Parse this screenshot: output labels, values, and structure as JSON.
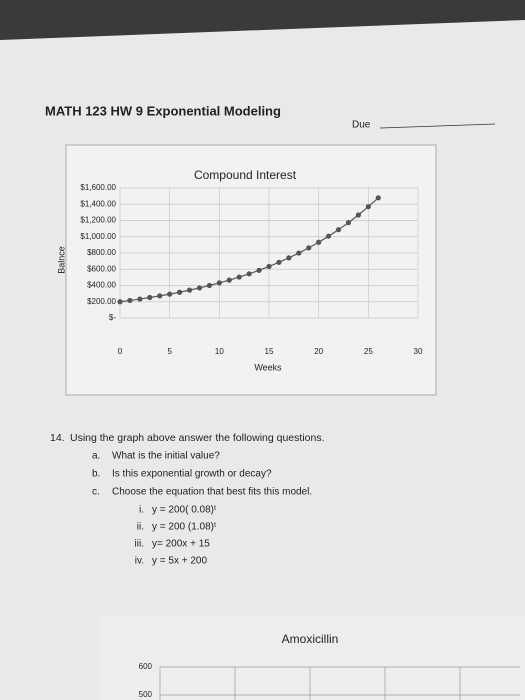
{
  "header": {
    "title": "MATH 123 HW 9 Exponential Modeling",
    "due": "Due"
  },
  "chart_data": [
    {
      "type": "line",
      "title": "Compound Interest",
      "x_label": "Weeks",
      "y_label": "Balnce",
      "color": "#555555",
      "grid": true,
      "x": [
        0,
        1,
        2,
        3,
        4,
        5,
        6,
        7,
        8,
        9,
        10,
        11,
        12,
        13,
        14,
        15,
        16,
        17,
        18,
        19,
        20,
        21,
        22,
        23,
        24,
        25,
        26
      ],
      "values": [
        200,
        216,
        233,
        252,
        272,
        294,
        317,
        343,
        370,
        400,
        432,
        466,
        504,
        544,
        587,
        634,
        685,
        740,
        799,
        863,
        932,
        1007,
        1087,
        1174,
        1268,
        1370,
        1479
      ],
      "xlim": [
        0,
        30
      ],
      "xticks": [
        0,
        5,
        10,
        15,
        20,
        25,
        30
      ],
      "ylim": [
        0,
        1600
      ],
      "yticks": [
        {
          "value": 0,
          "label": "$-"
        },
        {
          "value": 200,
          "label": "$200.00"
        },
        {
          "value": 400,
          "label": "$400.00"
        },
        {
          "value": 600,
          "label": "$600.00"
        },
        {
          "value": 800,
          "label": "$800.00"
        },
        {
          "value": 1000,
          "label": "$1,000.00"
        },
        {
          "value": 1200,
          "label": "$1,200.00"
        },
        {
          "value": 1400,
          "label": "$1,400.00"
        },
        {
          "value": 1600,
          "label": "$1,600.00"
        }
      ]
    },
    {
      "type": "line",
      "title": "Amoxicillin",
      "grid": true,
      "yticks": [
        600,
        500
      ]
    }
  ],
  "question": {
    "number": "14.",
    "text": "Using the graph above answer the following questions.",
    "items": [
      {
        "label": "a.",
        "text": "What is the initial value?"
      },
      {
        "label": "b.",
        "text": "Is this exponential growth or decay?"
      },
      {
        "label": "c.",
        "text": "Choose the equation that best fits this model."
      }
    ],
    "choices": [
      {
        "label": "i.",
        "text": "y = 200( 0.08)ᵗ"
      },
      {
        "label": "ii.",
        "text": "y = 200 (1.08)ᵗ"
      },
      {
        "label": "iii.",
        "text": "y= 200x + 15"
      },
      {
        "label": "iv.",
        "text": "y = 5x + 200"
      }
    ]
  }
}
